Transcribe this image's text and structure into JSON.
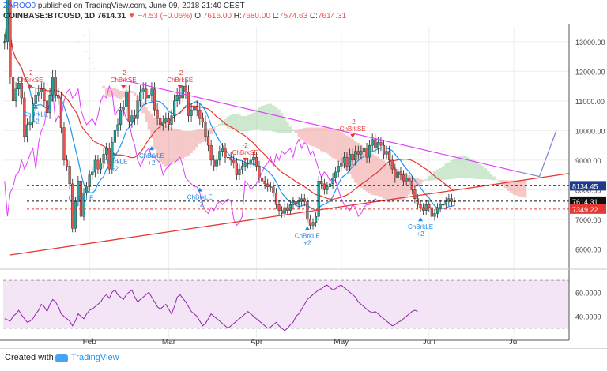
{
  "header": {
    "author": "ZAROO0",
    "published_text": "published on TradingView.com, June 09, 2018 21:40 CEST",
    "symbol": "COINBASE:BTCUSD, 1D",
    "last": "7614.31",
    "change": "▼ −4.53 (−0.06%)",
    "o_label": "O:",
    "o_val": "7616.00",
    "h_label": "H:",
    "h_val": "7680.00",
    "l_label": "L:",
    "l_val": "7574.63",
    "c_label": "C:",
    "c_val": "7614.31"
  },
  "footer": {
    "created_with": "Created with",
    "brand": "TradingView"
  },
  "colors": {
    "up": "#26a69a",
    "down": "#ef5350",
    "tenkan": "#2196f3",
    "kijun": "#e53935",
    "chikou": "#e040fb",
    "cloud_bull": "#a5d6a7",
    "cloud_bear": "#ef9a9a",
    "trend": "#e53935",
    "resist": "#e040fb",
    "rsi": "#8e24aa",
    "rsi_band": "#f3e5f5"
  },
  "chart_data": [
    {
      "type": "candlestick",
      "title": "",
      "x_ticks": [
        "Feb",
        "Mar",
        "Apr",
        "May",
        "Jun",
        "Jul"
      ],
      "y_ticks": [
        "13000.00",
        "12000.00",
        "11000.00",
        "10000.00",
        "9000.00",
        "8000.00",
        "7000.00",
        "6000.00"
      ],
      "ylim": [
        5400,
        13500
      ],
      "price_labels": [
        {
          "label": "8134.45",
          "value": 8134.45,
          "color": "#1e3a8a"
        },
        {
          "label": "7614.31",
          "value": 7614.31,
          "color": "#111111"
        },
        {
          "label": "7349.22",
          "value": 7349.22,
          "color": "#e53935"
        }
      ],
      "candles": [
        [
          1,
          13000
        ],
        [
          2,
          14900
        ],
        [
          3,
          11800
        ],
        [
          4,
          11000
        ],
        [
          5,
          11400
        ],
        [
          6,
          11600
        ],
        [
          7,
          11100
        ],
        [
          8,
          9800
        ],
        [
          9,
          10200
        ],
        [
          10,
          10300
        ],
        [
          11,
          10900
        ],
        [
          12,
          11200
        ],
        [
          13,
          11300
        ],
        [
          14,
          11400
        ],
        [
          15,
          11000
        ],
        [
          16,
          10600
        ],
        [
          17,
          11200
        ],
        [
          18,
          11800
        ],
        [
          19,
          11200
        ],
        [
          20,
          11100
        ],
        [
          21,
          10100
        ],
        [
          22,
          9000
        ],
        [
          23,
          8800
        ],
        [
          24,
          8200
        ],
        [
          25,
          6700
        ],
        [
          26,
          7600
        ],
        [
          27,
          8300
        ],
        [
          28,
          7100
        ],
        [
          29,
          7900
        ],
        [
          30,
          8100
        ],
        [
          31,
          8500
        ],
        [
          32,
          8600
        ],
        [
          33,
          9000
        ],
        [
          34,
          8700
        ],
        [
          35,
          8900
        ],
        [
          36,
          9200
        ],
        [
          37,
          9400
        ],
        [
          38,
          8700
        ],
        [
          39,
          9600
        ],
        [
          40,
          10000
        ],
        [
          41,
          10200
        ],
        [
          42,
          10700
        ],
        [
          43,
          10800
        ],
        [
          44,
          11300
        ],
        [
          45,
          10300
        ],
        [
          46,
          10500
        ],
        [
          47,
          10400
        ],
        [
          48,
          11000
        ],
        [
          49,
          11300
        ],
        [
          50,
          11400
        ],
        [
          51,
          11100
        ],
        [
          52,
          11200
        ],
        [
          53,
          11400
        ],
        [
          54,
          10700
        ],
        [
          55,
          10400
        ],
        [
          56,
          10200
        ],
        [
          57,
          10300
        ],
        [
          58,
          10400
        ],
        [
          59,
          10200
        ],
        [
          60,
          10500
        ],
        [
          61,
          11000
        ],
        [
          62,
          11200
        ],
        [
          63,
          11100
        ],
        [
          64,
          11500
        ],
        [
          65,
          11300
        ],
        [
          66,
          10500
        ],
        [
          67,
          10700
        ],
        [
          68,
          10800
        ],
        [
          69,
          10700
        ],
        [
          70,
          10400
        ],
        [
          71,
          10300
        ],
        [
          72,
          9800
        ],
        [
          73,
          9500
        ],
        [
          74,
          9000
        ],
        [
          75,
          8800
        ],
        [
          76,
          9000
        ],
        [
          77,
          9300
        ],
        [
          78,
          9400
        ],
        [
          79,
          9100
        ],
        [
          80,
          9100
        ],
        [
          81,
          9000
        ],
        [
          82,
          8900
        ],
        [
          83,
          8500
        ],
        [
          84,
          8700
        ],
        [
          85,
          8800
        ],
        [
          86,
          8900
        ],
        [
          87,
          8900
        ],
        [
          88,
          9000
        ],
        [
          89,
          9100
        ],
        [
          90,
          8800
        ],
        [
          91,
          8400
        ],
        [
          92,
          8300
        ],
        [
          93,
          8200
        ],
        [
          94,
          8100
        ],
        [
          95,
          8100
        ],
        [
          96,
          7900
        ],
        [
          97,
          7500
        ],
        [
          98,
          7300
        ],
        [
          99,
          7200
        ],
        [
          100,
          7400
        ],
        [
          101,
          7300
        ],
        [
          102,
          7500
        ],
        [
          103,
          7600
        ],
        [
          104,
          7500
        ],
        [
          105,
          7600
        ],
        [
          106,
          7700
        ],
        [
          107,
          7600
        ],
        [
          108,
          7000
        ],
        [
          109,
          6800
        ],
        [
          110,
          6900
        ],
        [
          111,
          7100
        ],
        [
          112,
          8300
        ],
        [
          113,
          8200
        ],
        [
          114,
          8000
        ],
        [
          115,
          8100
        ],
        [
          116,
          8200
        ],
        [
          117,
          8400
        ],
        [
          118,
          8600
        ],
        [
          119,
          8800
        ],
        [
          120,
          8900
        ],
        [
          121,
          9100
        ],
        [
          122,
          8800
        ],
        [
          123,
          9200
        ],
        [
          124,
          9000
        ],
        [
          125,
          9300
        ],
        [
          126,
          9200
        ],
        [
          127,
          9300
        ],
        [
          128,
          9400
        ],
        [
          129,
          9100
        ],
        [
          130,
          9500
        ],
        [
          131,
          9700
        ],
        [
          132,
          9400
        ],
        [
          133,
          9600
        ],
        [
          134,
          9500
        ],
        [
          135,
          9200
        ],
        [
          136,
          9300
        ],
        [
          137,
          9000
        ],
        [
          138,
          8700
        ],
        [
          139,
          8400
        ],
        [
          140,
          8600
        ],
        [
          141,
          8500
        ],
        [
          142,
          8300
        ],
        [
          143,
          8400
        ],
        [
          144,
          8300
        ],
        [
          145,
          8000
        ],
        [
          146,
          7700
        ],
        [
          147,
          7500
        ],
        [
          148,
          7400
        ],
        [
          149,
          7300
        ],
        [
          150,
          7500
        ],
        [
          151,
          7400
        ],
        [
          152,
          7100
        ],
        [
          153,
          7200
        ],
        [
          154,
          7400
        ],
        [
          155,
          7500
        ],
        [
          156,
          7500
        ],
        [
          157,
          7600
        ],
        [
          158,
          7700
        ],
        [
          159,
          7600
        ],
        [
          160,
          7614.31
        ]
      ],
      "annotations": [
        {
          "label": "-2",
          "label2": "ChBrkSE",
          "kind": "sell",
          "day": 10,
          "price": 11450
        },
        {
          "label": "-2",
          "label2": "ChBrkSE",
          "kind": "sell",
          "day": 43,
          "price": 11450
        },
        {
          "label": "-2",
          "label2": "ChBrkSE",
          "kind": "sell",
          "day": 63,
          "price": 11450
        },
        {
          "label": "-2",
          "label2": "ChBrkSE",
          "kind": "sell",
          "day": 86,
          "price": 9000
        },
        {
          "label": "-2",
          "label2": "ChBrkSE",
          "kind": "sell",
          "day": 124,
          "price": 9800
        },
        {
          "label": "ChBrkLE",
          "label2": "+2",
          "kind": "buy",
          "day": 12,
          "price": 10900
        },
        {
          "label": "ChBrkLE",
          "label2": "+2",
          "kind": "buy",
          "day": 40,
          "price": 9300
        },
        {
          "label": "ChBrkLE",
          "label2": "+2",
          "kind": "buy",
          "day": 53,
          "price": 9500
        },
        {
          "label": "ChBrkLE",
          "label2": "+2",
          "kind": "buy",
          "day": 70,
          "price": 8100
        },
        {
          "label": "ChBrkLE",
          "label2": "+2",
          "kind": "buy",
          "day": 108,
          "price": 6800
        },
        {
          "label": "ChBrkLE",
          "label2": "+2",
          "kind": "buy",
          "day": 148,
          "price": 7100
        }
      ],
      "extra_text": [
        {
          "label": "ChBrkLE",
          "day": 28,
          "price": 7650
        },
        {
          "label": "+2",
          "day": 26,
          "price": 7450
        }
      ]
    },
    {
      "type": "line",
      "title": "",
      "y_ticks": [
        "60.0000",
        "40.0000"
      ],
      "ylim": [
        22,
        76
      ],
      "values": [
        38,
        37,
        36,
        40,
        42,
        45,
        41,
        38,
        35,
        36,
        38,
        42,
        45,
        50,
        48,
        44,
        50,
        54,
        52,
        48,
        42,
        40,
        38,
        36,
        32,
        36,
        42,
        40,
        38,
        42,
        45,
        46,
        48,
        50,
        52,
        56,
        58,
        55,
        60,
        62,
        58,
        56,
        54,
        58,
        60,
        62,
        56,
        52,
        54,
        56,
        58,
        60,
        56,
        52,
        48,
        46,
        48,
        50,
        46,
        42,
        48,
        56,
        58,
        55,
        52,
        48,
        44,
        42,
        40,
        36,
        32,
        34,
        38,
        42,
        40,
        38,
        36,
        34,
        32,
        30,
        32,
        34,
        36,
        38,
        40,
        42,
        44,
        42,
        40,
        38,
        36,
        34,
        32,
        30,
        31,
        33,
        35,
        32,
        30,
        28,
        30,
        33,
        35,
        40,
        42,
        46,
        50,
        54,
        56,
        58,
        60,
        62,
        63,
        65,
        66,
        64,
        62,
        63,
        65,
        66,
        64,
        62,
        60,
        58,
        56,
        52,
        50,
        48,
        46,
        44,
        43,
        44,
        42,
        40,
        38,
        36,
        34,
        32,
        33,
        35,
        36,
        38,
        40,
        42,
        44,
        45,
        44
      ]
    }
  ]
}
